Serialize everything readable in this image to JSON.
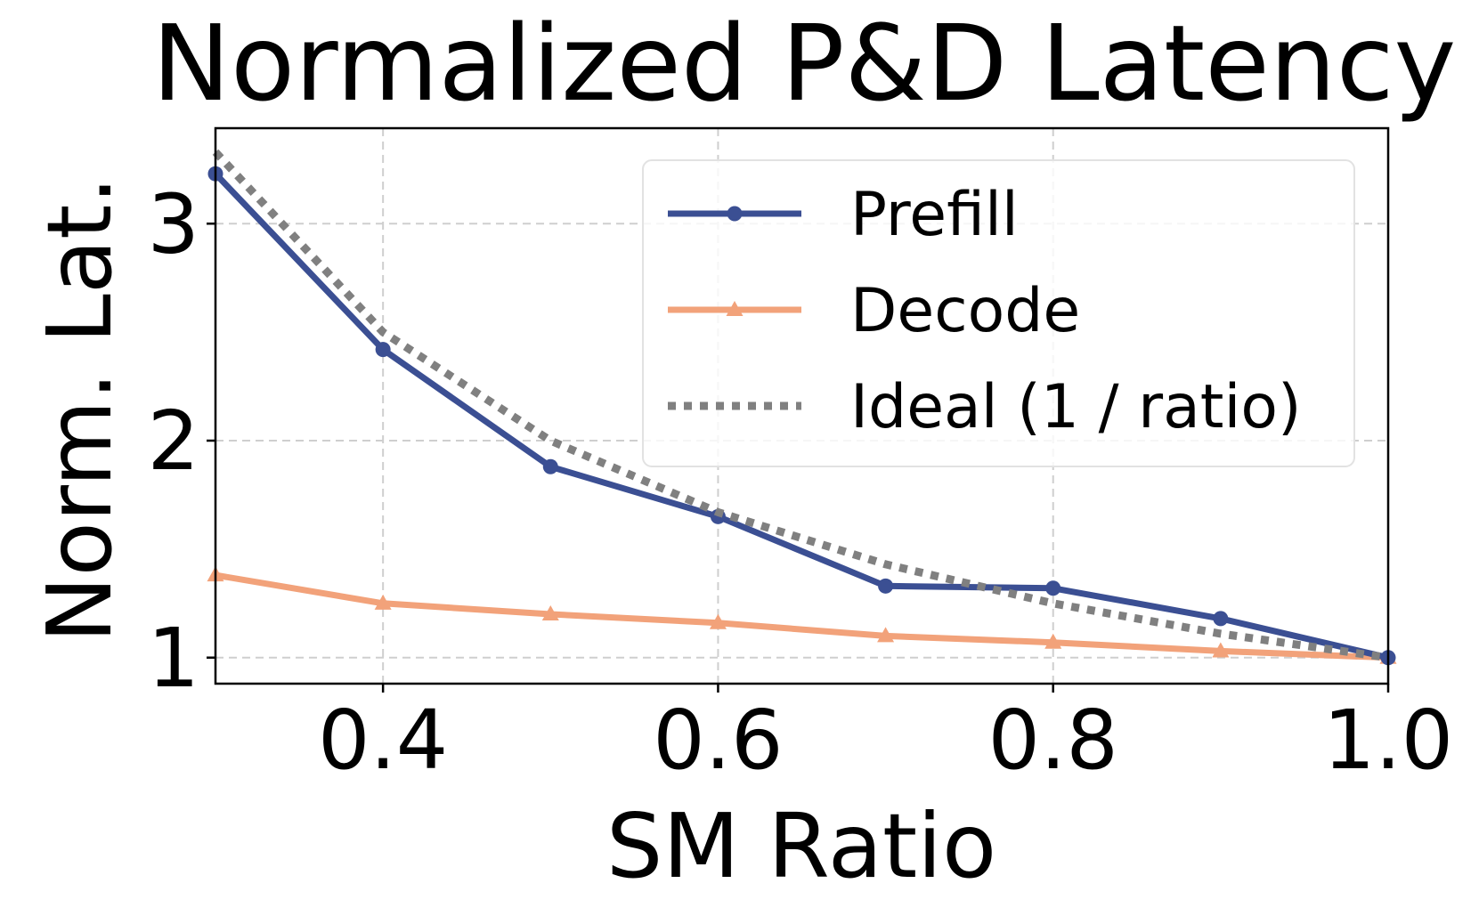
{
  "chart_data": {
    "type": "line",
    "title": "Normalized P&D Latency",
    "xlabel": "SM Ratio",
    "ylabel": "Norm. Lat.",
    "xlim": [
      0.3,
      1.0
    ],
    "ylim": [
      0.88,
      3.44
    ],
    "xticks": [
      0.4,
      0.6,
      0.8,
      1.0
    ],
    "xtick_labels": [
      "0.4",
      "0.6",
      "0.8",
      "1.0"
    ],
    "yticks": [
      1,
      2,
      3
    ],
    "ytick_labels": [
      "1",
      "2",
      "3"
    ],
    "grid": true,
    "legend_position": "top-right",
    "x": [
      0.3,
      0.4,
      0.5,
      0.6,
      0.7,
      0.8,
      0.9,
      1.0
    ],
    "series": [
      {
        "name": "Prefill",
        "color": "#3b4f93",
        "marker": "circle",
        "line_style": "solid",
        "values": [
          3.23,
          2.42,
          1.88,
          1.65,
          1.33,
          1.32,
          1.18,
          1.0
        ]
      },
      {
        "name": "Decode",
        "color": "#f2a27a",
        "marker": "triangle",
        "line_style": "solid",
        "values": [
          1.38,
          1.25,
          1.2,
          1.16,
          1.1,
          1.07,
          1.03,
          1.0
        ]
      },
      {
        "name": "Ideal (1 / ratio)",
        "color": "#808080",
        "marker": "none",
        "line_style": "dotted",
        "values": [
          3.33,
          2.5,
          2.0,
          1.67,
          1.43,
          1.25,
          1.11,
          1.0
        ]
      }
    ]
  }
}
